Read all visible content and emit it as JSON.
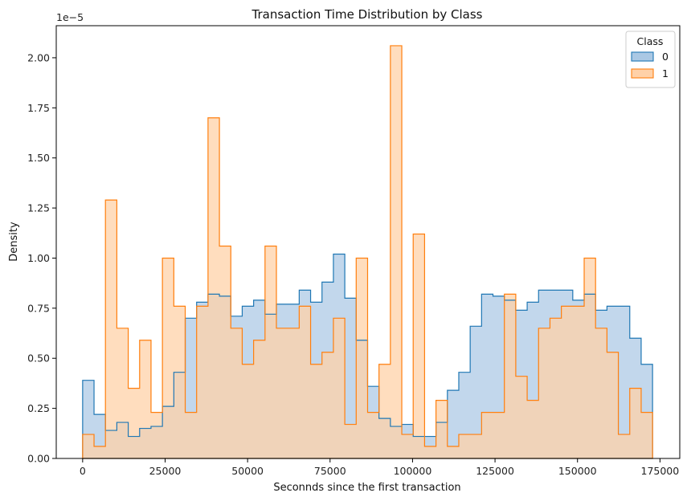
{
  "chart_data": {
    "type": "histogram",
    "title": "Transaction Time Distribution by Class",
    "xlabel": "Seconnds since the first transaction",
    "ylabel": "Density",
    "y_offset_label": "1e−5",
    "xlim": [
      -8000,
      181000
    ],
    "ylim": [
      0,
      2.16
    ],
    "x_ticks": [
      0,
      25000,
      50000,
      75000,
      100000,
      125000,
      150000,
      175000
    ],
    "x_tick_labels": [
      "0",
      "25000",
      "50000",
      "75000",
      "100000",
      "125000",
      "150000",
      "175000"
    ],
    "y_ticks": [
      0,
      0.25,
      0.5,
      0.75,
      1.0,
      1.25,
      1.5,
      1.75,
      2.0
    ],
    "y_tick_labels": [
      "0.00",
      "0.25",
      "0.50",
      "0.75",
      "1.00",
      "1.25",
      "1.50",
      "1.75",
      "2.00"
    ],
    "grid": false,
    "legend": {
      "title": "Class",
      "position": "top-right"
    },
    "bin_start": 0,
    "bin_width": 3455,
    "series": [
      {
        "name": "0",
        "color": "#1f77b4",
        "fill": "#aac8e4",
        "values": [
          0.39,
          0.22,
          0.14,
          0.18,
          0.11,
          0.15,
          0.16,
          0.26,
          0.43,
          0.7,
          0.78,
          0.82,
          0.81,
          0.71,
          0.76,
          0.79,
          0.72,
          0.77,
          0.77,
          0.84,
          0.78,
          0.88,
          1.02,
          0.8,
          0.59,
          0.36,
          0.2,
          0.16,
          0.17,
          0.11,
          0.11,
          0.18,
          0.34,
          0.43,
          0.66,
          0.82,
          0.81,
          0.79,
          0.74,
          0.78,
          0.84,
          0.84,
          0.84,
          0.79,
          0.82,
          0.74,
          0.76,
          0.76,
          0.6,
          0.47
        ]
      },
      {
        "name": "1",
        "color": "#ff7f0e",
        "fill": "#ffd1a8",
        "values": [
          0.12,
          0.06,
          1.29,
          0.65,
          0.35,
          0.59,
          0.23,
          1.0,
          0.76,
          0.23,
          0.76,
          1.7,
          1.06,
          0.65,
          0.47,
          0.59,
          1.06,
          0.65,
          0.65,
          0.76,
          0.47,
          0.53,
          0.7,
          0.17,
          1.0,
          0.23,
          0.47,
          2.06,
          0.12,
          1.12,
          0.06,
          0.29,
          0.06,
          0.12,
          0.12,
          0.23,
          0.23,
          0.82,
          0.41,
          0.29,
          0.65,
          0.7,
          0.76,
          0.76,
          1.0,
          0.65,
          0.53,
          0.12,
          0.35,
          0.23
        ]
      }
    ]
  }
}
